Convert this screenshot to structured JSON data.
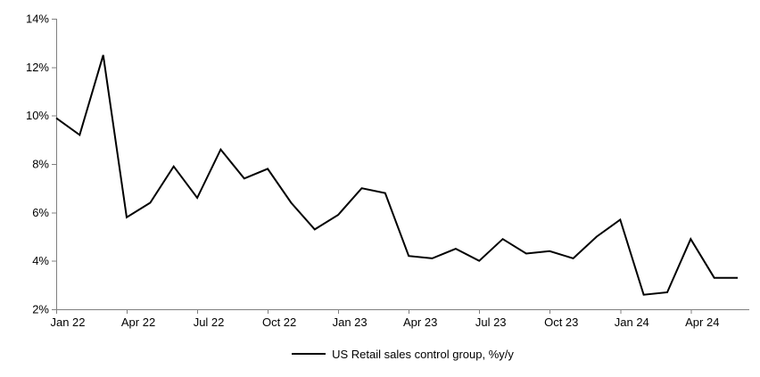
{
  "chart_data": {
    "type": "line",
    "title": "",
    "legend": [
      "US Retail sales control group, %y/y"
    ],
    "x": [
      "Jan 2022",
      "Feb 2022",
      "Mar 2022",
      "Apr 2022",
      "May 2022",
      "Jun 2022",
      "Jul 2022",
      "Aug 2022",
      "Sep 2022",
      "Oct 2022",
      "Nov 2022",
      "Dec 2022",
      "Jan 2023",
      "Feb 2023",
      "Mar 2023",
      "Apr 2023",
      "May 2023",
      "Jun 2023",
      "Jul 2023",
      "Aug 2023",
      "Sep 2023",
      "Oct 2023",
      "Nov 2023",
      "Dec 2023",
      "Jan 2024",
      "Feb 2024",
      "Mar 2024",
      "Apr 2024",
      "May 2024",
      "Jun 2024"
    ],
    "series": [
      {
        "name": "US Retail sales control group, %y/y",
        "values": [
          9.9,
          9.2,
          12.5,
          5.8,
          6.4,
          7.9,
          6.6,
          8.6,
          7.4,
          7.8,
          6.4,
          5.3,
          5.9,
          7.0,
          6.8,
          4.2,
          4.1,
          4.5,
          4.0,
          4.9,
          4.3,
          4.4,
          4.1,
          5.0,
          5.7,
          2.6,
          2.7,
          4.9,
          3.3,
          3.3
        ]
      }
    ],
    "xlabel": "",
    "ylabel": "",
    "ylim": [
      2,
      14
    ],
    "ytick_interval": 2,
    "ytick_labels": [
      "2%",
      "4%",
      "6%",
      "8%",
      "10%",
      "12%",
      "14%"
    ],
    "xtick_labels": [
      "Jan 22",
      "Apr 22",
      "Jul 22",
      "Oct 22",
      "Jan 23",
      "Apr 23",
      "Jul 23",
      "Oct 23",
      "Jan 24",
      "Apr 24"
    ],
    "xtick_every_n_points": 3,
    "grid": false,
    "legend_position": "bottom-center",
    "line_color": "#000000",
    "axis_color": "#808080",
    "text_color": "#000000"
  }
}
